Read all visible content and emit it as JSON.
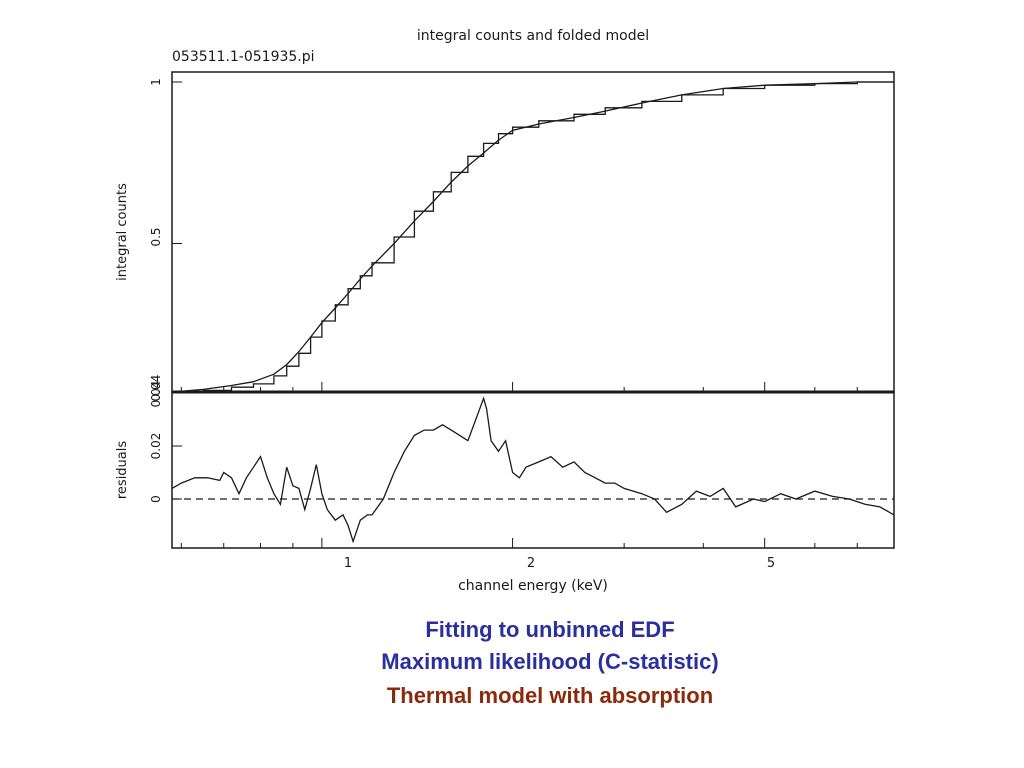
{
  "chart_data": [
    {
      "type": "line",
      "title": "integral counts and folded model",
      "subtitle": "053511.1-051935.pi",
      "ylabel": "integral counts",
      "xscale": "log",
      "xlim": [
        0.58,
        8.0
      ],
      "ylim": [
        0.04,
        1.0
      ],
      "ytick_labels": [
        "0.04",
        "0.5",
        "1"
      ],
      "grid": false,
      "series": [
        {
          "style": "histogram-step",
          "x": [
            0.58,
            0.65,
            0.72,
            0.78,
            0.84,
            0.88,
            0.92,
            0.96,
            1.0,
            1.05,
            1.1,
            1.15,
            1.2,
            1.3,
            1.4,
            1.5,
            1.6,
            1.7,
            1.8,
            1.9,
            2.0,
            2.2,
            2.5,
            2.8,
            3.2,
            3.7,
            4.3,
            5.0,
            6.0,
            7.0,
            8.0
          ],
          "y": [
            0.04,
            0.045,
            0.055,
            0.065,
            0.09,
            0.12,
            0.16,
            0.21,
            0.26,
            0.31,
            0.36,
            0.4,
            0.44,
            0.52,
            0.6,
            0.66,
            0.72,
            0.77,
            0.81,
            0.84,
            0.86,
            0.88,
            0.9,
            0.92,
            0.94,
            0.96,
            0.98,
            0.99,
            0.995,
            1.0,
            1.0
          ]
        },
        {
          "style": "model-line",
          "x": [
            0.58,
            0.65,
            0.72,
            0.78,
            0.84,
            0.88,
            0.92,
            0.96,
            1.0,
            1.05,
            1.1,
            1.15,
            1.2,
            1.3,
            1.4,
            1.5,
            1.6,
            1.7,
            1.8,
            1.9,
            2.0,
            2.2,
            2.5,
            2.8,
            3.2,
            3.7,
            4.3,
            5.0,
            6.0,
            7.0,
            8.0
          ],
          "y": [
            0.04,
            0.048,
            0.06,
            0.072,
            0.095,
            0.125,
            0.165,
            0.21,
            0.255,
            0.3,
            0.345,
            0.39,
            0.43,
            0.5,
            0.57,
            0.63,
            0.69,
            0.74,
            0.78,
            0.82,
            0.85,
            0.87,
            0.89,
            0.91,
            0.935,
            0.96,
            0.98,
            0.99,
            0.995,
            1.0,
            1.0
          ]
        }
      ]
    },
    {
      "type": "line",
      "xlabel": "channel energy (keV)",
      "ylabel": "residuals",
      "xscale": "log",
      "xlim": [
        0.58,
        8.0
      ],
      "ylim": [
        -0.018,
        0.04
      ],
      "xtick_labels": [
        "1",
        "2",
        "5"
      ],
      "ytick_labels": [
        "0",
        "0.02",
        "0.04"
      ],
      "zero_line": "dashed",
      "series": [
        {
          "x": [
            0.58,
            0.6,
            0.63,
            0.66,
            0.69,
            0.7,
            0.72,
            0.74,
            0.76,
            0.78,
            0.8,
            0.82,
            0.84,
            0.86,
            0.88,
            0.9,
            0.92,
            0.94,
            0.96,
            0.98,
            1.0,
            1.02,
            1.05,
            1.08,
            1.1,
            1.12,
            1.15,
            1.18,
            1.2,
            1.25,
            1.3,
            1.35,
            1.4,
            1.45,
            1.5,
            1.55,
            1.6,
            1.65,
            1.7,
            1.75,
            1.8,
            1.82,
            1.85,
            1.9,
            1.95,
            2.0,
            2.05,
            2.1,
            2.2,
            2.3,
            2.4,
            2.5,
            2.6,
            2.7,
            2.8,
            2.9,
            3.0,
            3.2,
            3.35,
            3.5,
            3.7,
            3.9,
            4.1,
            4.3,
            4.5,
            4.8,
            5.0,
            5.3,
            5.6,
            6.0,
            6.4,
            6.8,
            7.2,
            7.6,
            8.0
          ],
          "y": [
            0.004,
            0.006,
            0.008,
            0.008,
            0.007,
            0.01,
            0.008,
            0.002,
            0.008,
            0.012,
            0.016,
            0.008,
            0.002,
            -0.002,
            0.012,
            0.005,
            0.004,
            -0.004,
            0.004,
            0.013,
            0.002,
            -0.004,
            -0.008,
            -0.006,
            -0.01,
            -0.016,
            -0.008,
            -0.006,
            -0.006,
            0.0,
            0.01,
            0.018,
            0.024,
            0.026,
            0.026,
            0.028,
            0.026,
            0.024,
            0.022,
            0.03,
            0.038,
            0.034,
            0.022,
            0.018,
            0.022,
            0.01,
            0.008,
            0.012,
            0.014,
            0.016,
            0.012,
            0.014,
            0.01,
            0.008,
            0.006,
            0.006,
            0.004,
            0.002,
            0.0,
            -0.005,
            -0.002,
            0.003,
            0.001,
            0.004,
            -0.003,
            0.0,
            -0.001,
            0.002,
            0.0,
            0.003,
            0.001,
            0.0,
            -0.002,
            -0.003,
            -0.006
          ]
        }
      ]
    }
  ],
  "caption": {
    "line1": "Fitting to unbinned EDF",
    "line2": "Maximum likelihood (C-statistic)",
    "line3": "Thermal model with absorption"
  },
  "colors": {
    "caption_blue": "#2b2f9e",
    "caption_red": "#8b2a0a",
    "ink": "#1a1a1a"
  }
}
